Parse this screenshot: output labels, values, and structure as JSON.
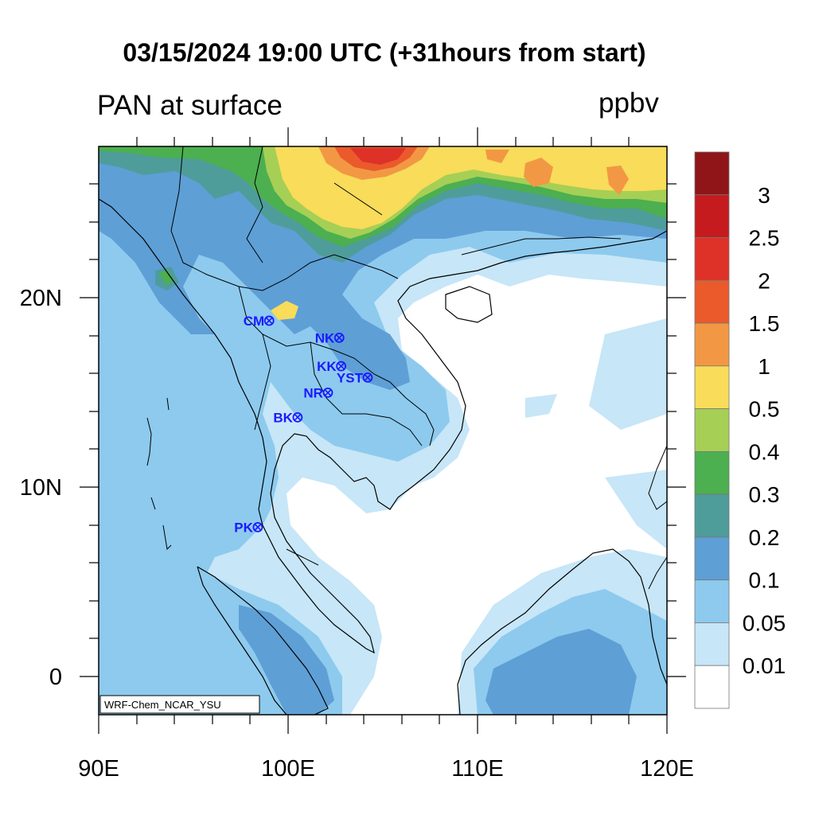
{
  "title": "03/15/2024 19:00 UTC (+31hours from start)",
  "subtitle": "PAN at surface",
  "units": "ppbv",
  "credit": "WRF-Chem_NCAR_YSU",
  "axes": {
    "x_ticks": [
      "90E",
      "100E",
      "110E",
      "120E"
    ],
    "y_ticks": [
      "20N",
      "10N",
      "0"
    ],
    "lon_range": [
      90,
      120
    ],
    "lat_range": [
      -2,
      28
    ]
  },
  "colorbar": {
    "labels": [
      "3",
      "2.5",
      "2",
      "1.5",
      "1",
      "0.5",
      "0.4",
      "0.3",
      "0.2",
      "0.1",
      "0.05",
      "0.01"
    ],
    "colors": [
      "#8f1519",
      "#c51b1f",
      "#de3128",
      "#ea5a2b",
      "#f29844",
      "#f8dc5a",
      "#a6cf55",
      "#4caf50",
      "#4e9d9b",
      "#5e9fd6",
      "#8dcaee",
      "#c7e6f7",
      "#ffffff"
    ]
  },
  "stations": [
    {
      "code": "CM",
      "lon": 99.0,
      "lat": 18.8
    },
    {
      "code": "NK",
      "lon": 102.7,
      "lat": 17.9
    },
    {
      "code": "KK",
      "lon": 102.8,
      "lat": 16.4
    },
    {
      "code": "YST",
      "lon": 104.2,
      "lat": 15.8
    },
    {
      "code": "NR",
      "lon": 102.1,
      "lat": 15.0
    },
    {
      "code": "BK",
      "lon": 100.5,
      "lat": 13.7
    },
    {
      "code": "PK",
      "lon": 98.4,
      "lat": 7.9
    }
  ]
}
